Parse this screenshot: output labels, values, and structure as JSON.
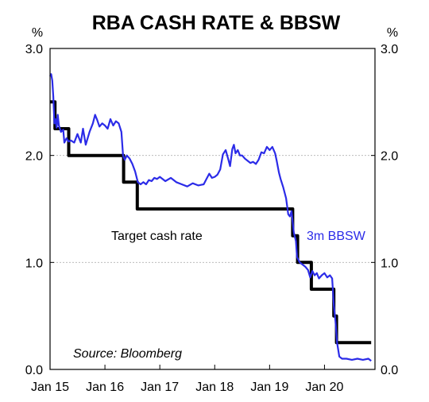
{
  "chart_data": {
    "type": "line",
    "title": "RBA CASH RATE & BBSW",
    "y_unit_left": "%",
    "y_unit_right": "%",
    "ylim": [
      0.0,
      3.0
    ],
    "yticks_left": [
      "3.0",
      "2.0",
      "1.0",
      "0.0"
    ],
    "yticks_right": [
      "3.0",
      "2.0",
      "1.0",
      "0.0"
    ],
    "y_tick_values": [
      3.0,
      2.0,
      1.0,
      0.0
    ],
    "xlim": [
      2015.0,
      2020.92
    ],
    "xticks": [
      {
        "label": "Jan 15",
        "x": 2015.0
      },
      {
        "label": "Jan 16",
        "x": 2016.0
      },
      {
        "label": "Jan 17",
        "x": 2017.0
      },
      {
        "label": "Jan 18",
        "x": 2018.0
      },
      {
        "label": "Jan 19",
        "x": 2019.0
      },
      {
        "label": "Jan 20",
        "x": 2020.0
      }
    ],
    "grid": true,
    "source": "Source: Bloomberg",
    "series": [
      {
        "name": "Target cash rate",
        "color": "#000000",
        "step": true,
        "points": [
          [
            2015.0,
            2.5
          ],
          [
            2015.09,
            2.25
          ],
          [
            2015.34,
            2.0
          ],
          [
            2016.34,
            1.75
          ],
          [
            2016.59,
            1.5
          ],
          [
            2019.42,
            1.25
          ],
          [
            2019.51,
            1.0
          ],
          [
            2019.76,
            0.75
          ],
          [
            2020.17,
            0.5
          ],
          [
            2020.22,
            0.25
          ],
          [
            2020.85,
            0.25
          ]
        ]
      },
      {
        "name": "3m BBSW",
        "color": "#2b2be8",
        "step": false,
        "points": [
          [
            2015.0,
            2.74
          ],
          [
            2015.02,
            2.76
          ],
          [
            2015.04,
            2.7
          ],
          [
            2015.06,
            2.55
          ],
          [
            2015.08,
            2.3
          ],
          [
            2015.1,
            2.34
          ],
          [
            2015.12,
            2.26
          ],
          [
            2015.14,
            2.38
          ],
          [
            2015.16,
            2.28
          ],
          [
            2015.2,
            2.22
          ],
          [
            2015.24,
            2.24
          ],
          [
            2015.26,
            2.12
          ],
          [
            2015.3,
            2.16
          ],
          [
            2015.34,
            2.13
          ],
          [
            2015.38,
            2.14
          ],
          [
            2015.44,
            2.12
          ],
          [
            2015.5,
            2.2
          ],
          [
            2015.56,
            2.12
          ],
          [
            2015.6,
            2.25
          ],
          [
            2015.65,
            2.1
          ],
          [
            2015.72,
            2.22
          ],
          [
            2015.78,
            2.3
          ],
          [
            2015.82,
            2.38
          ],
          [
            2015.86,
            2.33
          ],
          [
            2015.9,
            2.27
          ],
          [
            2015.95,
            2.3
          ],
          [
            2016.0,
            2.28
          ],
          [
            2016.05,
            2.25
          ],
          [
            2016.1,
            2.34
          ],
          [
            2016.15,
            2.28
          ],
          [
            2016.2,
            2.32
          ],
          [
            2016.25,
            2.3
          ],
          [
            2016.3,
            2.22
          ],
          [
            2016.33,
            2.0
          ],
          [
            2016.36,
            1.96
          ],
          [
            2016.4,
            2.0
          ],
          [
            2016.45,
            1.97
          ],
          [
            2016.5,
            1.92
          ],
          [
            2016.55,
            1.85
          ],
          [
            2016.6,
            1.75
          ],
          [
            2016.65,
            1.73
          ],
          [
            2016.7,
            1.75
          ],
          [
            2016.75,
            1.73
          ],
          [
            2016.8,
            1.77
          ],
          [
            2016.85,
            1.76
          ],
          [
            2016.9,
            1.79
          ],
          [
            2016.95,
            1.78
          ],
          [
            2017.0,
            1.8
          ],
          [
            2017.1,
            1.76
          ],
          [
            2017.2,
            1.79
          ],
          [
            2017.3,
            1.75
          ],
          [
            2017.4,
            1.73
          ],
          [
            2017.5,
            1.71
          ],
          [
            2017.6,
            1.74
          ],
          [
            2017.7,
            1.72
          ],
          [
            2017.8,
            1.73
          ],
          [
            2017.85,
            1.78
          ],
          [
            2017.9,
            1.83
          ],
          [
            2017.95,
            1.79
          ],
          [
            2018.0,
            1.8
          ],
          [
            2018.05,
            1.82
          ],
          [
            2018.1,
            1.87
          ],
          [
            2018.15,
            2.01
          ],
          [
            2018.2,
            2.05
          ],
          [
            2018.25,
            1.96
          ],
          [
            2018.28,
            1.9
          ],
          [
            2018.32,
            2.06
          ],
          [
            2018.35,
            2.1
          ],
          [
            2018.38,
            2.02
          ],
          [
            2018.42,
            2.05
          ],
          [
            2018.46,
            2.0
          ],
          [
            2018.5,
            2.0
          ],
          [
            2018.55,
            1.97
          ],
          [
            2018.6,
            1.95
          ],
          [
            2018.65,
            1.93
          ],
          [
            2018.7,
            1.94
          ],
          [
            2018.75,
            1.92
          ],
          [
            2018.8,
            1.96
          ],
          [
            2018.85,
            2.03
          ],
          [
            2018.9,
            2.02
          ],
          [
            2018.95,
            2.08
          ],
          [
            2019.0,
            2.05
          ],
          [
            2019.05,
            2.08
          ],
          [
            2019.1,
            2.02
          ],
          [
            2019.13,
            1.95
          ],
          [
            2019.17,
            1.84
          ],
          [
            2019.2,
            1.78
          ],
          [
            2019.25,
            1.7
          ],
          [
            2019.3,
            1.6
          ],
          [
            2019.34,
            1.45
          ],
          [
            2019.37,
            1.43
          ],
          [
            2019.4,
            1.48
          ],
          [
            2019.44,
            1.28
          ],
          [
            2019.48,
            1.2
          ],
          [
            2019.5,
            1.05
          ],
          [
            2019.55,
            1.0
          ],
          [
            2019.6,
            0.98
          ],
          [
            2019.65,
            0.96
          ],
          [
            2019.7,
            0.93
          ],
          [
            2019.74,
            0.86
          ],
          [
            2019.78,
            0.92
          ],
          [
            2019.82,
            0.88
          ],
          [
            2019.86,
            0.9
          ],
          [
            2019.9,
            0.85
          ],
          [
            2019.95,
            0.88
          ],
          [
            2020.0,
            0.9
          ],
          [
            2020.05,
            0.86
          ],
          [
            2020.1,
            0.88
          ],
          [
            2020.14,
            0.85
          ],
          [
            2020.17,
            0.6
          ],
          [
            2020.2,
            0.45
          ],
          [
            2020.23,
            0.25
          ],
          [
            2020.27,
            0.12
          ],
          [
            2020.32,
            0.1
          ],
          [
            2020.4,
            0.1
          ],
          [
            2020.5,
            0.09
          ],
          [
            2020.6,
            0.1
          ],
          [
            2020.7,
            0.09
          ],
          [
            2020.8,
            0.1
          ],
          [
            2020.85,
            0.08
          ]
        ]
      }
    ],
    "annotations": [
      {
        "text": "Target cash rate",
        "series": "Target cash rate"
      },
      {
        "text": "3m BBSW",
        "series": "3m BBSW"
      }
    ]
  }
}
